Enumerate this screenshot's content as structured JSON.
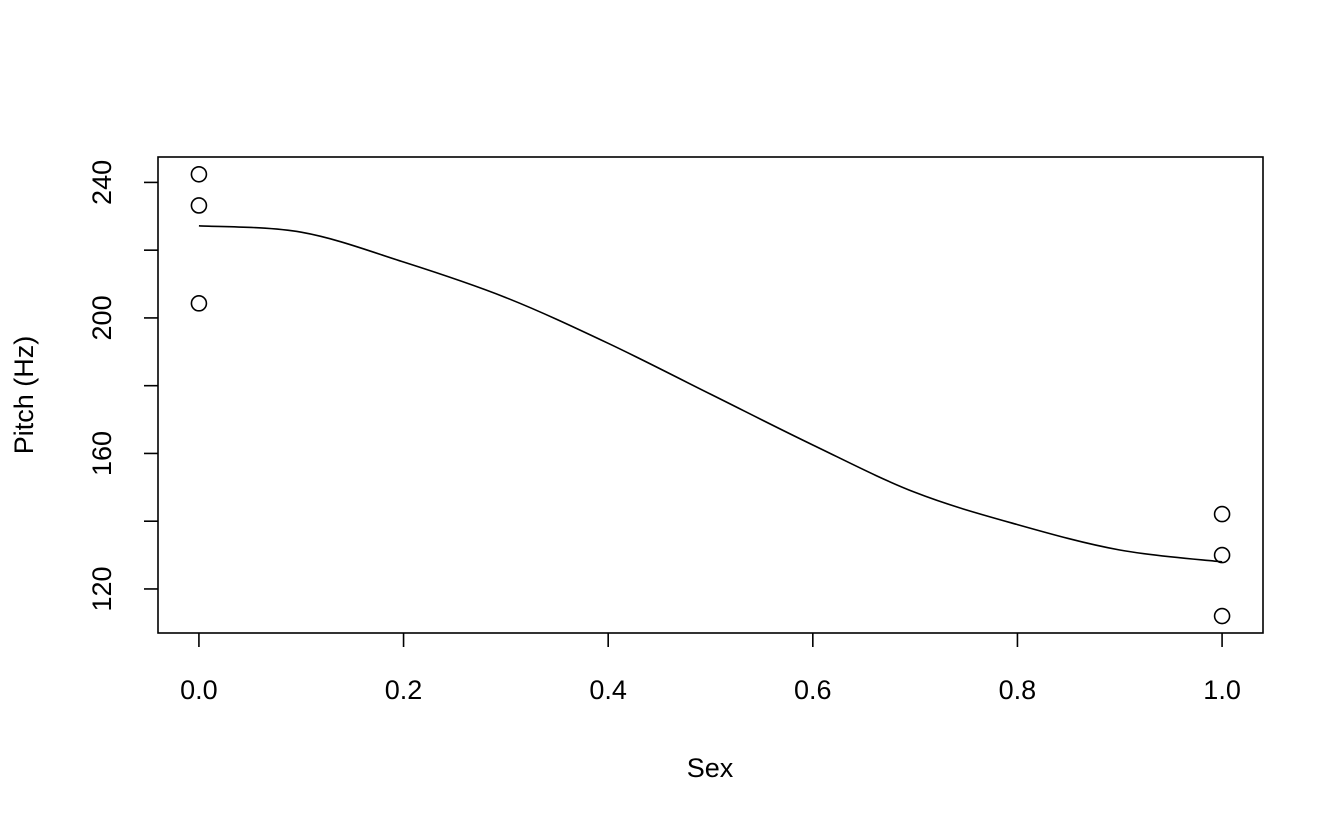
{
  "chart_data": {
    "type": "scatter",
    "x_label": "Sex",
    "y_label": "Pitch (Hz)",
    "x": [
      0,
      0,
      0,
      1,
      1,
      1
    ],
    "values": [
      242.4,
      233.2,
      204.3,
      142.1,
      130.0,
      112.0
    ],
    "line": {
      "x": [
        0,
        0.1,
        0.2,
        0.3,
        0.4,
        0.5,
        0.6,
        0.7,
        0.8,
        0.9,
        1.0
      ],
      "values": [
        227.2,
        225.3,
        216.5,
        206.0,
        192.5,
        177.5,
        162.5,
        148.5,
        139.0,
        131.5,
        128.0
      ]
    },
    "color": "#000000",
    "xlim": [
      -0.04,
      1.04
    ],
    "ylim": [
      107,
      247.5
    ],
    "xticks": [
      {
        "value": 0,
        "label": "0.0"
      },
      0.2,
      0.4,
      0.6,
      0.8,
      {
        "value": 1,
        "label": "1.0"
      }
    ],
    "yticks": [
      120,
      {
        "value": 140,
        "label": null
      },
      160,
      {
        "value": 180,
        "label": null
      },
      200,
      {
        "value": 220,
        "label": null
      },
      240
    ]
  }
}
